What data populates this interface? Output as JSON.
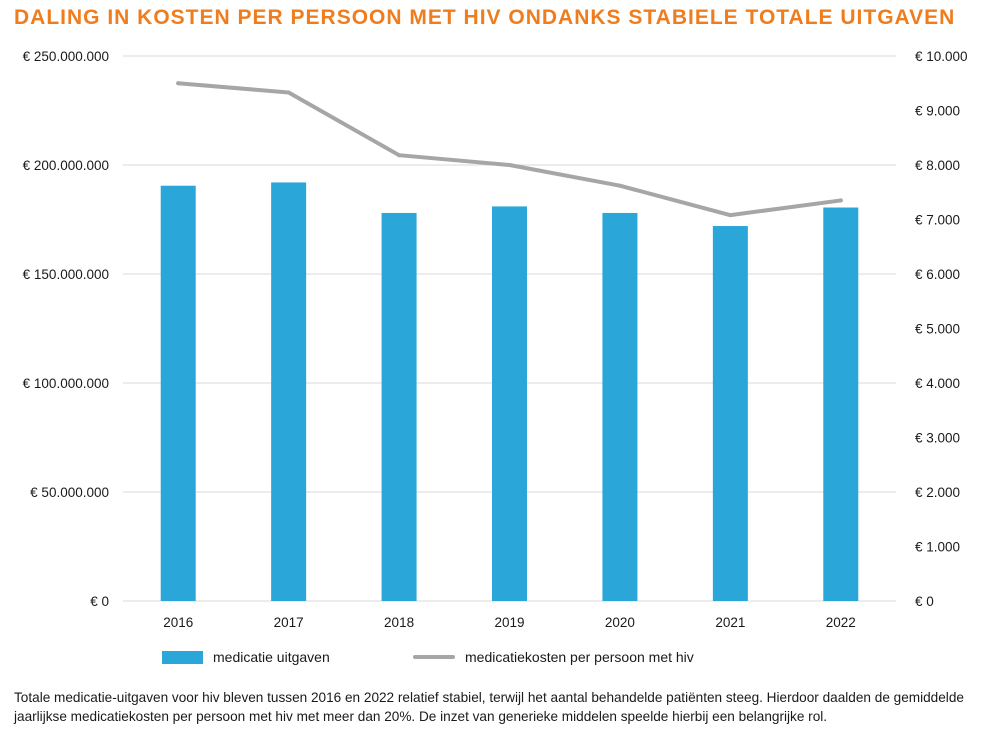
{
  "title": "DALING IN KOSTEN PER PERSOON MET HIV ONDANKS STABIELE TOTALE UITGAVEN",
  "caption": "Totale medicatie-uitgaven voor hiv bleven tussen 2016 en 2022 relatief stabiel, terwijl het aantal behandelde patiënten steeg. Hierdoor daalden de gemiddelde jaarlijkse medicatiekosten per persoon met hiv met meer dan 20%. De inzet van generieke middelen speelde hierbij een belangrijke rol.",
  "colors": {
    "title": "#f07d1d",
    "bar": "#2aa7d8",
    "line": "#a6a6a6",
    "grid": "#d9d9d9"
  },
  "chart_data": {
    "type": "bar",
    "categories": [
      "2016",
      "2017",
      "2018",
      "2019",
      "2020",
      "2021",
      "2022"
    ],
    "series": [
      {
        "name": "medicatie uitgaven",
        "type": "bar",
        "axis": "left",
        "values": [
          190500000,
          192000000,
          178000000,
          181000000,
          178000000,
          172000000,
          180500000
        ]
      },
      {
        "name": "medicatiekosten per persoon met hiv",
        "type": "line",
        "axis": "right",
        "values": [
          9500,
          9330,
          8180,
          8000,
          7620,
          7080,
          7350
        ]
      }
    ],
    "y_left": {
      "min": 0,
      "max": 250000000,
      "step": 50000000,
      "tick_labels": [
        "€ 0",
        "€ 50.000.000",
        "€ 100.000.000",
        "€ 150.000.000",
        "€ 200.000.000",
        "€ 250.000.000"
      ]
    },
    "y_right": {
      "min": 0,
      "max": 10000,
      "step": 1000,
      "tick_labels": [
        "€ 0",
        "€ 1.000",
        "€ 2.000",
        "€ 3.000",
        "€ 4.000",
        "€ 5.000",
        "€ 6.000",
        "€ 7.000",
        "€ 8.000",
        "€ 9.000",
        "€ 10.000"
      ]
    },
    "grid": true,
    "legend_position": "bottom"
  }
}
